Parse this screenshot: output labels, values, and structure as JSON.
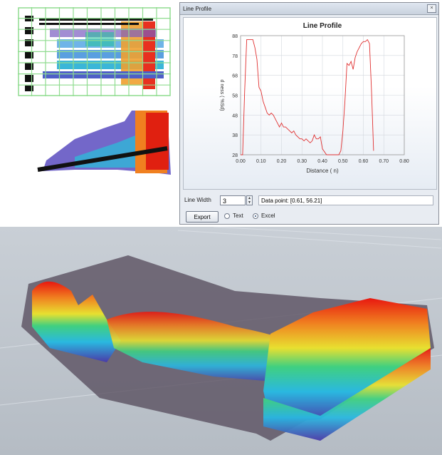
{
  "line_profile": {
    "window_title": "Line Profile",
    "close_glyph": "×",
    "line_width_label": "Line Width",
    "line_width_value": "3",
    "data_point_text": "Data point: [0.61, 56.21]",
    "export_label": "Export",
    "format_options": [
      {
        "label": "Text",
        "selected": false
      },
      {
        "label": "Excel",
        "selected": true
      }
    ]
  },
  "chart_data": {
    "type": "line",
    "title": "Line Profile",
    "xlabel": "Distance ( n)",
    "ylabel": "d ness ( %Sd)",
    "xlim": [
      0,
      0.8
    ],
    "ylim": [
      28,
      88
    ],
    "xticks": [
      "0.00",
      "0.10",
      "0.20",
      "0.30",
      "0.40",
      "0.50",
      "0.60",
      "0.70",
      "0.80"
    ],
    "yticks": [
      "28",
      "38",
      "48",
      "58",
      "68",
      "78",
      "88"
    ],
    "grid": true,
    "series": [
      {
        "color": "#e03030",
        "x": [
          0.0,
          0.01,
          0.02,
          0.03,
          0.04,
          0.05,
          0.06,
          0.07,
          0.08,
          0.09,
          0.1,
          0.11,
          0.12,
          0.13,
          0.14,
          0.15,
          0.16,
          0.17,
          0.18,
          0.19,
          0.2,
          0.21,
          0.22,
          0.23,
          0.24,
          0.25,
          0.26,
          0.27,
          0.28,
          0.29,
          0.3,
          0.31,
          0.32,
          0.33,
          0.34,
          0.35,
          0.36,
          0.37,
          0.38,
          0.39,
          0.4,
          0.42,
          0.44,
          0.46,
          0.48,
          0.49,
          0.5,
          0.51,
          0.52,
          0.53,
          0.54,
          0.55,
          0.56,
          0.57,
          0.58,
          0.59,
          0.6,
          0.61,
          0.62,
          0.63,
          0.64,
          0.65
        ],
        "y": [
          27,
          28,
          60,
          86,
          86,
          86,
          86,
          82,
          76,
          62,
          60,
          55,
          52,
          49,
          48,
          49,
          48,
          46,
          44,
          42,
          44,
          42,
          42,
          41,
          40,
          39,
          40,
          38,
          37,
          36,
          36,
          35,
          36,
          35,
          34,
          35,
          38,
          36,
          36,
          37,
          31,
          27,
          28,
          28,
          27,
          30,
          40,
          55,
          74,
          73,
          75,
          71,
          77,
          80,
          82,
          84,
          85,
          85,
          86,
          84,
          60,
          30
        ]
      }
    ]
  },
  "colors": {
    "heat_low": "#3b2a8f",
    "heat_mid": "#22c0e0",
    "heat_high": "#e02010",
    "grid_lines": "#8fdc8f"
  }
}
